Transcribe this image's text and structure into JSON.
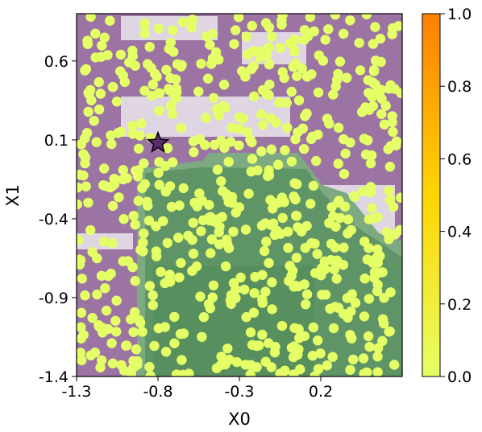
{
  "chart_data": {
    "type": "scatter",
    "title": "",
    "xlabel": "X0",
    "ylabel": "X1",
    "xlim": [
      -1.3,
      0.7
    ],
    "ylim": [
      -1.4,
      0.9
    ],
    "xticks": [
      -1.3,
      -0.8,
      -0.3,
      0.2
    ],
    "yticks": [
      -1.4,
      -0.9,
      -0.4,
      0.1,
      0.6
    ],
    "xtick_labels": [
      "-1.3",
      "-0.8",
      "-0.3",
      "0.2"
    ],
    "ytick_labels": [
      "-1.4",
      "-0.9",
      "-0.4",
      "0.1",
      "0.6"
    ],
    "marker_color": "#e5ff66",
    "background": {
      "description_colors": {
        "high": "#9b74a4",
        "mid": "#ece6ef",
        "low": "#5f9467"
      },
      "green_region": {
        "x": [
          -0.85,
          0.7
        ],
        "y": [
          -1.4,
          0.1
        ]
      }
    },
    "star": {
      "x": -0.8,
      "y": 0.08,
      "color": "#5c2a6e"
    },
    "colorbar": {
      "range": [
        0.0,
        1.0
      ],
      "ticks": [
        "0.0",
        "0.2",
        "0.4",
        "0.6",
        "0.8",
        "1.0"
      ],
      "colors": [
        "#e6ff66",
        "#ffd500",
        "#ff7f00"
      ]
    },
    "points_count": 650
  }
}
